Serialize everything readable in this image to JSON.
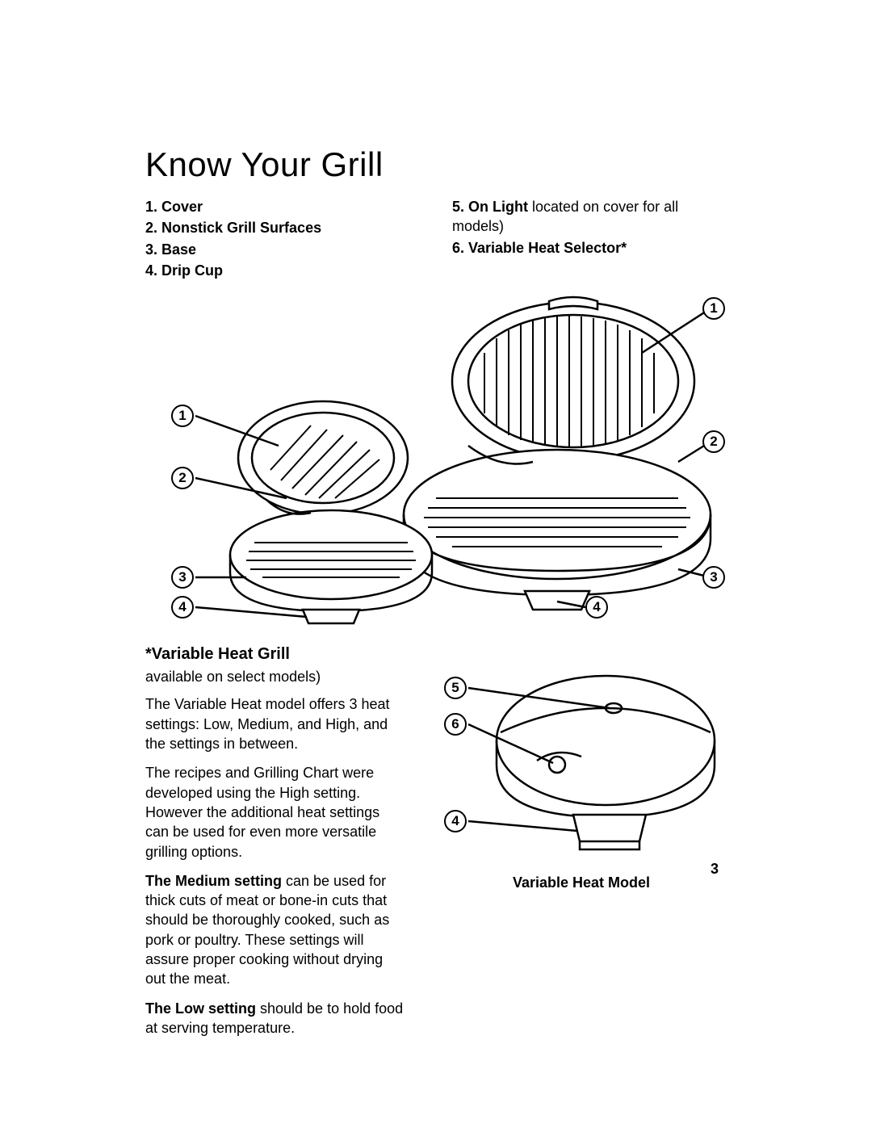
{
  "title": "Know Your Grill",
  "parts_left": [
    {
      "num": "1.",
      "label": "Cover",
      "tail": ""
    },
    {
      "num": "2.",
      "label": "Nonstick Grill Surfaces",
      "tail": ""
    },
    {
      "num": "3.",
      "label": "Base",
      "tail": ""
    },
    {
      "num": "4.",
      "label": "Drip Cup",
      "tail": ""
    }
  ],
  "parts_right": [
    {
      "num": "5.",
      "label": "On Light",
      "tail": " located on cover for all models)"
    },
    {
      "num": "6.",
      "label": "Variable Heat Selector*",
      "tail": ""
    }
  ],
  "callouts_main": {
    "c1a": "1",
    "c2a": "2",
    "c3a": "3",
    "c4a": "4",
    "c1b": "1",
    "c2b": "2",
    "c3b": "3",
    "c4b": "4"
  },
  "vh": {
    "heading": "*Variable Heat Grill",
    "sub": "available on select models)",
    "p1": "The Variable Heat model offers 3 heat settings: Low, Medium, and High, and the settings in between.",
    "p2": "The recipes and Grilling Chart were developed using the High setting. However the additional heat settings can be used for even more versatile grilling options.",
    "p3_bold": "The Medium setting",
    "p3_tail": " can be used for thick cuts of meat or bone-in cuts that should be thoroughly cooked, such as pork or poultry. These settings will assure proper cooking without drying out the meat.",
    "p4_bold": "The Low setting",
    "p4_tail": " should be to hold food at serving temperature."
  },
  "callouts_vh": {
    "c5": "5",
    "c6": "6",
    "c4": "4"
  },
  "caption": "Variable Heat Model",
  "pagenum": "3",
  "colors": {
    "line": "#000000",
    "bg": "#ffffff"
  }
}
